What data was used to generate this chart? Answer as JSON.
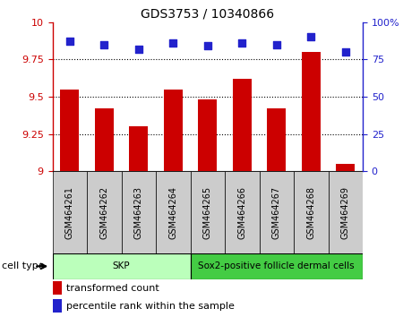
{
  "title": "GDS3753 / 10340866",
  "samples": [
    "GSM464261",
    "GSM464262",
    "GSM464263",
    "GSM464264",
    "GSM464265",
    "GSM464266",
    "GSM464267",
    "GSM464268",
    "GSM464269"
  ],
  "bar_values": [
    9.55,
    9.42,
    9.3,
    9.55,
    9.48,
    9.62,
    9.42,
    9.8,
    9.05
  ],
  "dot_values": [
    87,
    85,
    82,
    86,
    84,
    86,
    85,
    90,
    80
  ],
  "ylim_left": [
    9.0,
    10.0
  ],
  "ylim_right": [
    0,
    100
  ],
  "yticks_left": [
    9.0,
    9.25,
    9.5,
    9.75,
    10.0
  ],
  "ytick_labels_left": [
    "9",
    "9.25",
    "9.5",
    "9.75",
    "10"
  ],
  "yticks_right": [
    0,
    25,
    50,
    75,
    100
  ],
  "ytick_labels_right": [
    "0",
    "25",
    "50",
    "75",
    "100%"
  ],
  "bar_color": "#cc0000",
  "dot_color": "#2222cc",
  "grid_color": "#000000",
  "cell_groups": [
    {
      "label": "SKP",
      "start": 0,
      "end": 3,
      "color": "#bbffbb"
    },
    {
      "label": "Sox2-positive follicle dermal cells",
      "start": 4,
      "end": 8,
      "color": "#44cc44"
    }
  ],
  "cell_type_label": "cell type",
  "legend_bar_label": "transformed count",
  "legend_dot_label": "percentile rank within the sample",
  "left_axis_color": "#cc0000",
  "right_axis_color": "#2222cc",
  "sample_box_color": "#cccccc",
  "fig_bg": "#ffffff"
}
